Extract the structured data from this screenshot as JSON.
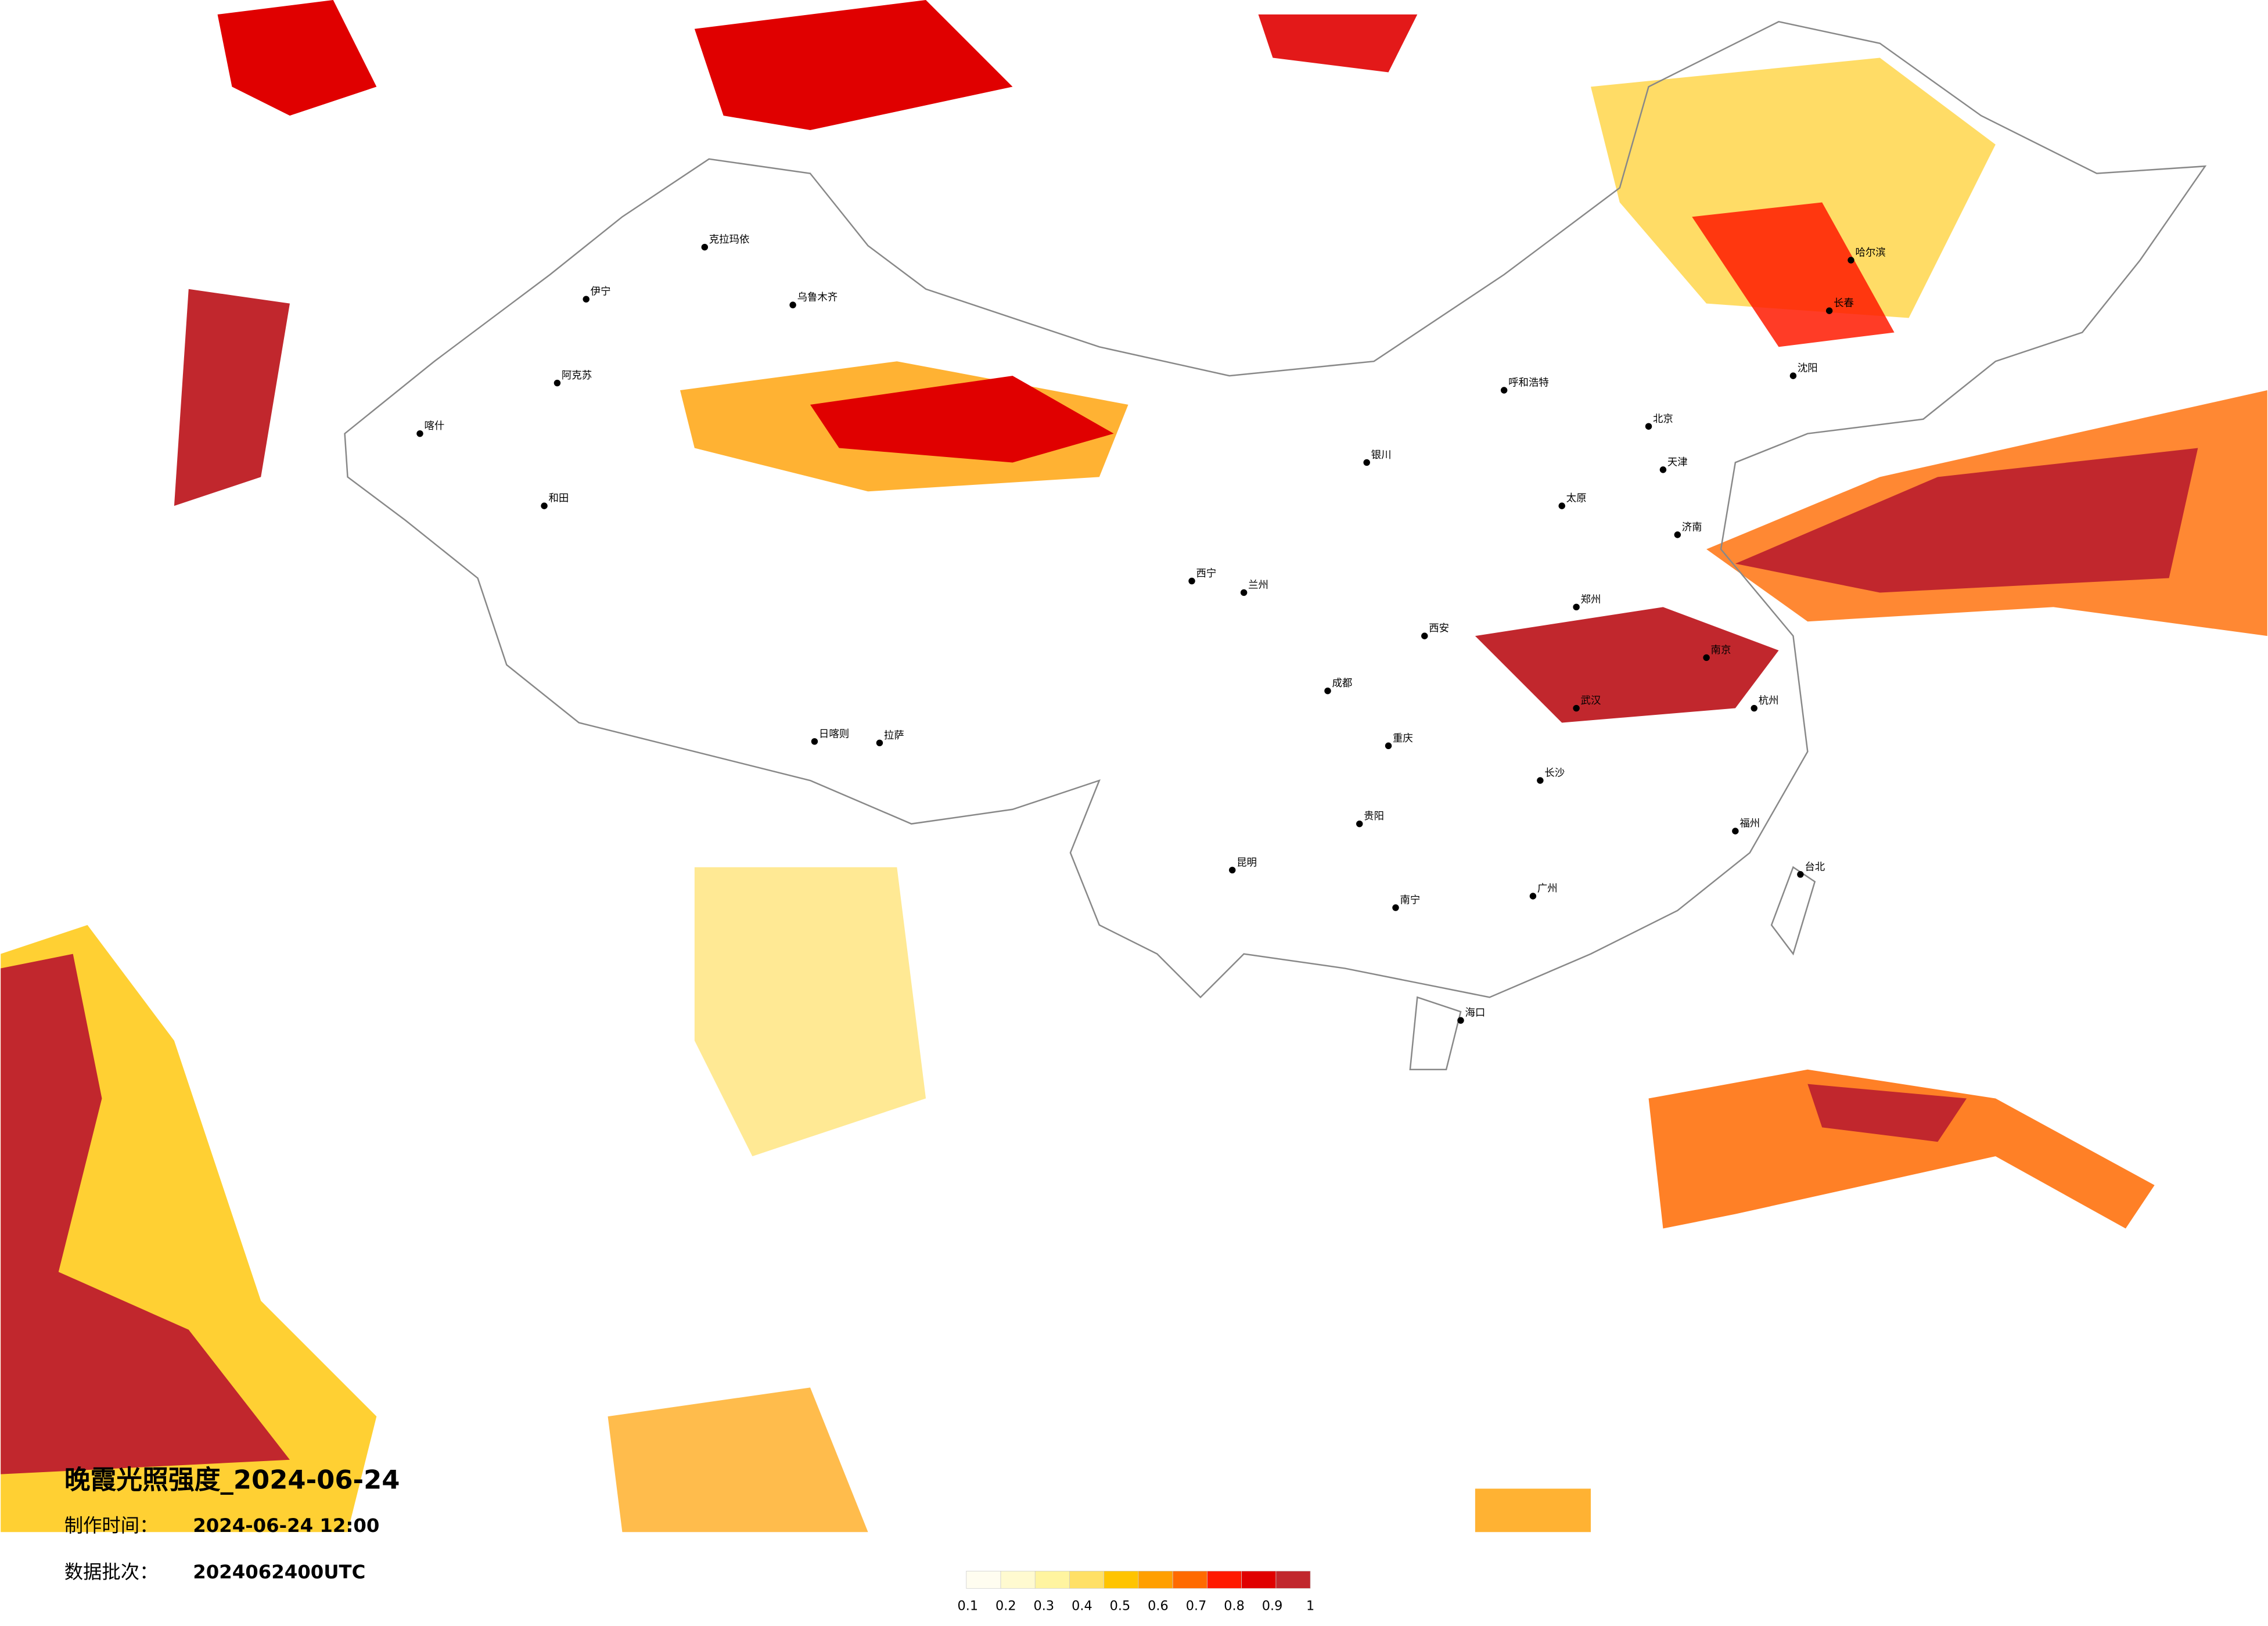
{
  "title": "晚霞光照强度_2024-06-24",
  "production_time": {
    "label": "制作时间：",
    "value": "2024-06-24 12:00"
  },
  "data_batch": {
    "label": "数据批次：",
    "value": "2024062400UTC"
  },
  "legend": {
    "ticks": [
      0.1,
      0.2,
      0.3,
      0.4,
      0.5,
      0.6,
      0.7,
      0.8,
      0.9,
      1
    ],
    "colors": [
      "#fffdf0",
      "#fffad0",
      "#fff4a0",
      "#ffe066",
      "#ffc400",
      "#ff9f00",
      "#ff6a00",
      "#ff1a00",
      "#e00000",
      "#c1272d"
    ]
  },
  "cities": [
    "乌鲁木齐",
    "克拉玛依",
    "伊宁",
    "阿克苏",
    "喀什",
    "和田",
    "拉萨",
    "日喀则",
    "西宁",
    "兰州",
    "成都",
    "重庆",
    "昆明",
    "贵阳",
    "南宁",
    "广州",
    "海口",
    "福州",
    "台北",
    "杭州",
    "南京",
    "武汉",
    "长沙",
    "郑州",
    "西安",
    "太原",
    "呼和浩特",
    "哈尔滨",
    "长春",
    "沈阳",
    "银川",
    "北京",
    "天津",
    "济南"
  ]
}
